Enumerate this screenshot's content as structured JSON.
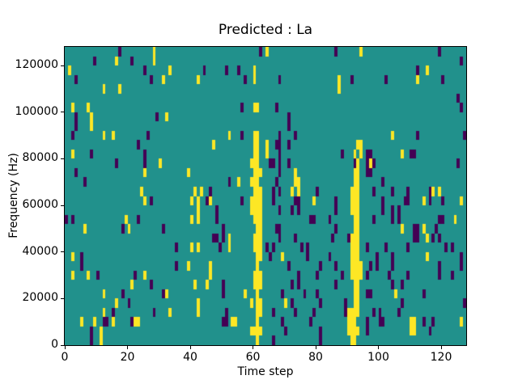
{
  "title": "Predicted : La",
  "x_axis": {
    "label": "Time step",
    "ticks": [
      0,
      20,
      40,
      60,
      80,
      100,
      120
    ],
    "range": [
      0,
      128
    ]
  },
  "y_axis": {
    "label": "Frequency (Hz)",
    "ticks": [
      0,
      20000,
      40000,
      60000,
      80000,
      100000,
      120000
    ],
    "range": [
      0,
      128000
    ]
  },
  "chart_data": {
    "type": "heatmap",
    "title": "Predicted : La",
    "xlabel": "Time step",
    "ylabel": "Frequency (Hz)",
    "xlim": [
      0,
      128
    ],
    "ylim": [
      0,
      128000
    ],
    "grid": {
      "cols": 128,
      "rows": 32,
      "cell_hz": 4000,
      "cell_steps": 1
    },
    "colors": {
      "low": "#440154",
      "mid": "#21918c",
      "high": "#fde725"
    },
    "legend": "none",
    "value_levels": {
      "low": 0,
      "mid": 1,
      "high": 2
    },
    "high_cells": [
      [
        28,
        31
      ],
      [
        16,
        30
      ],
      [
        28,
        30
      ],
      [
        1,
        29
      ],
      [
        31,
        28
      ],
      [
        12,
        27
      ],
      [
        17,
        27
      ],
      [
        2,
        25
      ],
      [
        7,
        25
      ],
      [
        8,
        24
      ],
      [
        8,
        23
      ],
      [
        12,
        22
      ],
      [
        15,
        22
      ],
      [
        2,
        20
      ],
      [
        30,
        19
      ],
      [
        25,
        18
      ],
      [
        24,
        16
      ],
      [
        33,
        29
      ],
      [
        60,
        29
      ],
      [
        60,
        28
      ],
      [
        42,
        28
      ],
      [
        32,
        24
      ],
      [
        52,
        22
      ],
      [
        47,
        21
      ],
      [
        39,
        18
      ],
      [
        55,
        17
      ],
      [
        41,
        16
      ],
      [
        43,
        16
      ],
      [
        60,
        25
      ],
      [
        61,
        25
      ],
      [
        60,
        22
      ],
      [
        61,
        22
      ],
      [
        60,
        21
      ],
      [
        61,
        21
      ],
      [
        60,
        20
      ],
      [
        61,
        20
      ],
      [
        59,
        19
      ],
      [
        60,
        19
      ],
      [
        61,
        19
      ],
      [
        60,
        18
      ],
      [
        61,
        18
      ],
      [
        62,
        18
      ],
      [
        59,
        17
      ],
      [
        60,
        17
      ],
      [
        61,
        17
      ],
      [
        60,
        16
      ],
      [
        61,
        16
      ],
      [
        62,
        16
      ],
      [
        64,
        31
      ],
      [
        94,
        31
      ],
      [
        87,
        28
      ],
      [
        87,
        27
      ],
      [
        64,
        21
      ],
      [
        64,
        20
      ],
      [
        73,
        18
      ],
      [
        73,
        17
      ],
      [
        74,
        17
      ],
      [
        74,
        16
      ],
      [
        72,
        16
      ],
      [
        93,
        21
      ],
      [
        94,
        21
      ],
      [
        92,
        20
      ],
      [
        94,
        20
      ],
      [
        93,
        19
      ],
      [
        92,
        18
      ],
      [
        93,
        18
      ],
      [
        92,
        17
      ],
      [
        93,
        17
      ],
      [
        91,
        16
      ],
      [
        92,
        16
      ],
      [
        93,
        16
      ],
      [
        115,
        29
      ],
      [
        112,
        28
      ],
      [
        104,
        22
      ],
      [
        107,
        20
      ],
      [
        97,
        19
      ],
      [
        117,
        16
      ],
      [
        119,
        16
      ],
      [
        25,
        15
      ],
      [
        19,
        13
      ],
      [
        6,
        12
      ],
      [
        20,
        12
      ],
      [
        2,
        9
      ],
      [
        2,
        7
      ],
      [
        7,
        7
      ],
      [
        25,
        7
      ],
      [
        21,
        6
      ],
      [
        12,
        5
      ],
      [
        16,
        4
      ],
      [
        12,
        3
      ],
      [
        5,
        2
      ],
      [
        9,
        2
      ],
      [
        15,
        2
      ],
      [
        22,
        2
      ],
      [
        23,
        2
      ],
      [
        11,
        1
      ],
      [
        11,
        0
      ],
      [
        40,
        15
      ],
      [
        42,
        15
      ],
      [
        46,
        15
      ],
      [
        42,
        14
      ],
      [
        42,
        13
      ],
      [
        40,
        13
      ],
      [
        52,
        11
      ],
      [
        52,
        10
      ],
      [
        40,
        10
      ],
      [
        42,
        10
      ],
      [
        39,
        8
      ],
      [
        46,
        8
      ],
      [
        46,
        7
      ],
      [
        41,
        6
      ],
      [
        45,
        6
      ],
      [
        32,
        5
      ],
      [
        57,
        5
      ],
      [
        42,
        4
      ],
      [
        42,
        3
      ],
      [
        33,
        3
      ],
      [
        53,
        2
      ],
      [
        54,
        2
      ],
      [
        59,
        15
      ],
      [
        60,
        15
      ],
      [
        61,
        15
      ],
      [
        62,
        15
      ],
      [
        59,
        14
      ],
      [
        60,
        14
      ],
      [
        61,
        14
      ],
      [
        62,
        14
      ],
      [
        60,
        13
      ],
      [
        61,
        13
      ],
      [
        62,
        13
      ],
      [
        61,
        12
      ],
      [
        62,
        12
      ],
      [
        60,
        11
      ],
      [
        61,
        11
      ],
      [
        62,
        11
      ],
      [
        60,
        10
      ],
      [
        61,
        10
      ],
      [
        62,
        10
      ],
      [
        61,
        9
      ],
      [
        62,
        9
      ],
      [
        61,
        8
      ],
      [
        60,
        7
      ],
      [
        61,
        7
      ],
      [
        62,
        7
      ],
      [
        60,
        6
      ],
      [
        61,
        6
      ],
      [
        62,
        6
      ],
      [
        61,
        5
      ],
      [
        59,
        4
      ],
      [
        61,
        4
      ],
      [
        62,
        4
      ],
      [
        61,
        3
      ],
      [
        62,
        3
      ],
      [
        61,
        2
      ],
      [
        59,
        1
      ],
      [
        60,
        1
      ],
      [
        61,
        1
      ],
      [
        62,
        1
      ],
      [
        61,
        0
      ],
      [
        79,
        15
      ],
      [
        69,
        9
      ],
      [
        70,
        4
      ],
      [
        91,
        15
      ],
      [
        92,
        15
      ],
      [
        93,
        15
      ],
      [
        91,
        14
      ],
      [
        92,
        14
      ],
      [
        93,
        14
      ],
      [
        92,
        13
      ],
      [
        93,
        13
      ],
      [
        92,
        12
      ],
      [
        93,
        12
      ],
      [
        91,
        11
      ],
      [
        92,
        11
      ],
      [
        93,
        11
      ],
      [
        91,
        10
      ],
      [
        92,
        10
      ],
      [
        93,
        10
      ],
      [
        91,
        9
      ],
      [
        92,
        9
      ],
      [
        93,
        9
      ],
      [
        91,
        8
      ],
      [
        92,
        8
      ],
      [
        93,
        8
      ],
      [
        94,
        8
      ],
      [
        91,
        7
      ],
      [
        92,
        7
      ],
      [
        93,
        7
      ],
      [
        94,
        7
      ],
      [
        92,
        6
      ],
      [
        93,
        6
      ],
      [
        92,
        5
      ],
      [
        93,
        5
      ],
      [
        92,
        4
      ],
      [
        93,
        4
      ],
      [
        90,
        3
      ],
      [
        91,
        3
      ],
      [
        92,
        3
      ],
      [
        93,
        3
      ],
      [
        90,
        2
      ],
      [
        91,
        2
      ],
      [
        92,
        2
      ],
      [
        90,
        1
      ],
      [
        91,
        1
      ],
      [
        92,
        1
      ],
      [
        93,
        1
      ],
      [
        91,
        0
      ],
      [
        92,
        0
      ],
      [
        114,
        15
      ],
      [
        126,
        15
      ],
      [
        124,
        13
      ],
      [
        107,
        12
      ],
      [
        114,
        12
      ],
      [
        115,
        11
      ],
      [
        115,
        9
      ],
      [
        105,
        5
      ],
      [
        110,
        2
      ],
      [
        111,
        2
      ],
      [
        126,
        2
      ],
      [
        110,
        1
      ],
      [
        111,
        1
      ]
    ],
    "low_cells": [
      [
        17,
        31
      ],
      [
        9,
        30
      ],
      [
        21,
        30
      ],
      [
        25,
        29
      ],
      [
        3,
        28
      ],
      [
        27,
        28
      ],
      [
        3,
        24
      ],
      [
        29,
        24
      ],
      [
        3,
        23
      ],
      [
        2,
        22
      ],
      [
        26,
        22
      ],
      [
        23,
        21
      ],
      [
        8,
        20
      ],
      [
        25,
        20
      ],
      [
        16,
        19
      ],
      [
        25,
        19
      ],
      [
        3,
        18
      ],
      [
        6,
        17
      ],
      [
        62,
        31
      ],
      [
        44,
        29
      ],
      [
        51,
        29
      ],
      [
        55,
        29
      ],
      [
        57,
        28
      ],
      [
        56,
        25
      ],
      [
        56,
        22
      ],
      [
        52,
        17
      ],
      [
        46,
        16
      ],
      [
        86,
        31
      ],
      [
        68,
        28
      ],
      [
        91,
        28
      ],
      [
        67,
        25
      ],
      [
        71,
        24
      ],
      [
        71,
        23
      ],
      [
        68,
        22
      ],
      [
        73,
        22
      ],
      [
        67,
        21
      ],
      [
        68,
        21
      ],
      [
        71,
        21
      ],
      [
        68,
        20
      ],
      [
        88,
        20
      ],
      [
        65,
        19
      ],
      [
        66,
        19
      ],
      [
        68,
        19
      ],
      [
        71,
        19
      ],
      [
        92,
        19
      ],
      [
        68,
        18
      ],
      [
        67,
        17
      ],
      [
        66,
        16
      ],
      [
        68,
        16
      ],
      [
        80,
        16
      ],
      [
        119,
        31
      ],
      [
        126,
        30
      ],
      [
        112,
        29
      ],
      [
        102,
        28
      ],
      [
        120,
        28
      ],
      [
        125,
        26
      ],
      [
        126,
        25
      ],
      [
        112,
        22
      ],
      [
        127,
        22
      ],
      [
        96,
        20
      ],
      [
        97,
        20
      ],
      [
        110,
        20
      ],
      [
        111,
        20
      ],
      [
        96,
        19
      ],
      [
        98,
        19
      ],
      [
        125,
        19
      ],
      [
        96,
        18
      ],
      [
        97,
        18
      ],
      [
        101,
        17
      ],
      [
        98,
        16
      ],
      [
        104,
        16
      ],
      [
        109,
        16
      ],
      [
        116,
        16
      ],
      [
        27,
        15
      ],
      [
        2,
        13
      ],
      [
        0,
        13
      ],
      [
        23,
        13
      ],
      [
        18,
        12
      ],
      [
        31,
        12
      ],
      [
        5,
        9
      ],
      [
        5,
        8
      ],
      [
        10,
        7
      ],
      [
        22,
        7
      ],
      [
        27,
        6
      ],
      [
        18,
        5
      ],
      [
        31,
        5
      ],
      [
        20,
        4
      ],
      [
        15,
        3
      ],
      [
        28,
        3
      ],
      [
        12,
        2
      ],
      [
        13,
        2
      ],
      [
        21,
        2
      ],
      [
        8,
        1
      ],
      [
        8,
        0
      ],
      [
        45,
        15
      ],
      [
        56,
        15
      ],
      [
        48,
        14
      ],
      [
        48,
        13
      ],
      [
        50,
        12
      ],
      [
        47,
        11
      ],
      [
        48,
        11
      ],
      [
        50,
        11
      ],
      [
        49,
        10
      ],
      [
        35,
        10
      ],
      [
        35,
        8
      ],
      [
        50,
        6
      ],
      [
        50,
        5
      ],
      [
        51,
        3
      ],
      [
        50,
        2
      ],
      [
        51,
        2
      ],
      [
        66,
        15
      ],
      [
        73,
        15
      ],
      [
        74,
        15
      ],
      [
        86,
        15
      ],
      [
        68,
        14
      ],
      [
        72,
        14
      ],
      [
        74,
        14
      ],
      [
        86,
        14
      ],
      [
        78,
        13
      ],
      [
        79,
        13
      ],
      [
        84,
        13
      ],
      [
        67,
        12
      ],
      [
        68,
        12
      ],
      [
        86,
        12
      ],
      [
        68,
        11
      ],
      [
        73,
        11
      ],
      [
        85,
        11
      ],
      [
        90,
        11
      ],
      [
        64,
        10
      ],
      [
        66,
        10
      ],
      [
        75,
        10
      ],
      [
        77,
        10
      ],
      [
        65,
        9
      ],
      [
        77,
        9
      ],
      [
        84,
        9
      ],
      [
        71,
        8
      ],
      [
        81,
        8
      ],
      [
        86,
        8
      ],
      [
        74,
        7
      ],
      [
        80,
        7
      ],
      [
        88,
        7
      ],
      [
        72,
        6
      ],
      [
        74,
        6
      ],
      [
        86,
        6
      ],
      [
        69,
        5
      ],
      [
        76,
        5
      ],
      [
        80,
        5
      ],
      [
        72,
        4
      ],
      [
        81,
        4
      ],
      [
        89,
        4
      ],
      [
        66,
        3
      ],
      [
        73,
        3
      ],
      [
        79,
        3
      ],
      [
        89,
        3
      ],
      [
        69,
        2
      ],
      [
        78,
        2
      ],
      [
        70,
        1
      ],
      [
        81,
        1
      ],
      [
        66,
        0
      ],
      [
        81,
        0
      ],
      [
        101,
        15
      ],
      [
        108,
        15
      ],
      [
        109,
        15
      ],
      [
        116,
        15
      ],
      [
        120,
        15
      ],
      [
        101,
        14
      ],
      [
        104,
        14
      ],
      [
        106,
        14
      ],
      [
        98,
        13
      ],
      [
        104,
        13
      ],
      [
        106,
        13
      ],
      [
        119,
        13
      ],
      [
        120,
        13
      ],
      [
        111,
        12
      ],
      [
        112,
        12
      ],
      [
        118,
        12
      ],
      [
        111,
        11
      ],
      [
        112,
        11
      ],
      [
        117,
        11
      ],
      [
        119,
        11
      ],
      [
        96,
        10
      ],
      [
        102,
        10
      ],
      [
        109,
        10
      ],
      [
        121,
        10
      ],
      [
        123,
        10
      ],
      [
        99,
        9
      ],
      [
        104,
        9
      ],
      [
        126,
        9
      ],
      [
        97,
        8
      ],
      [
        99,
        8
      ],
      [
        104,
        8
      ],
      [
        119,
        8
      ],
      [
        126,
        8
      ],
      [
        96,
        7
      ],
      [
        103,
        7
      ],
      [
        109,
        7
      ],
      [
        119,
        7
      ],
      [
        123,
        7
      ],
      [
        104,
        6
      ],
      [
        107,
        6
      ],
      [
        96,
        5
      ],
      [
        97,
        5
      ],
      [
        114,
        5
      ],
      [
        107,
        4
      ],
      [
        127,
        4
      ],
      [
        98,
        3
      ],
      [
        100,
        3
      ],
      [
        106,
        3
      ],
      [
        96,
        2
      ],
      [
        100,
        2
      ],
      [
        101,
        2
      ],
      [
        114,
        2
      ],
      [
        117,
        2
      ],
      [
        96,
        1
      ],
      [
        116,
        1
      ]
    ]
  }
}
